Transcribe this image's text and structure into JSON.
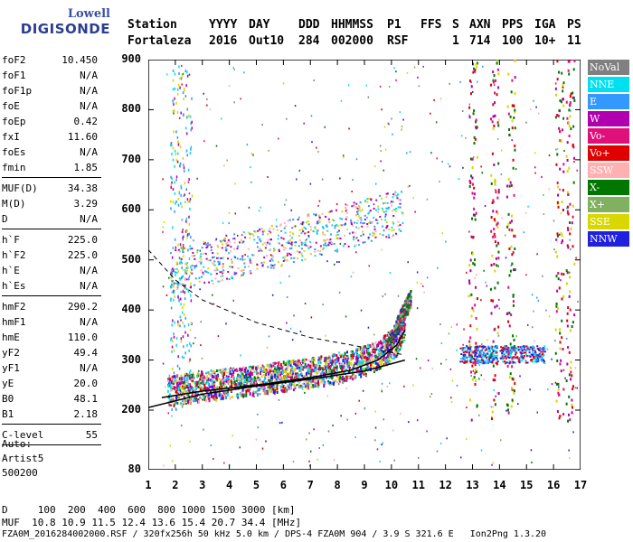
{
  "logo": {
    "top": "Lowell",
    "bottom": "DIGISONDE"
  },
  "header": {
    "row1": [
      "Station",
      "YYYY",
      "DAY",
      "DDD",
      "HHMMSS",
      "P1",
      "FFS",
      "S",
      "AXN",
      "PPS",
      "IGA",
      "PS"
    ],
    "row2": [
      "Fortaleza",
      "2016",
      "Out10",
      "284",
      "002000",
      "RSF",
      "1",
      "714",
      "100",
      "10+",
      "11"
    ]
  },
  "params": [
    {
      "k": "foF2",
      "v": "10.450"
    },
    {
      "k": "foF1",
      "v": "N/A"
    },
    {
      "k": "foF1p",
      "v": "N/A"
    },
    {
      "k": "foE",
      "v": "N/A"
    },
    {
      "k": "foEp",
      "v": "0.42"
    },
    {
      "k": "fxI",
      "v": "11.60"
    },
    {
      "k": "foEs",
      "v": "N/A"
    },
    {
      "k": "fmin",
      "v": "1.85"
    },
    {
      "k": "MUF(D)",
      "v": "34.38"
    },
    {
      "k": "M(D)",
      "v": "3.29"
    },
    {
      "k": "D",
      "v": "N/A"
    },
    {
      "k": "h`F",
      "v": "225.0"
    },
    {
      "k": "h`F2",
      "v": "225.0"
    },
    {
      "k": "h`E",
      "v": "N/A"
    },
    {
      "k": "h`Es",
      "v": "N/A"
    },
    {
      "k": "hmF2",
      "v": "290.2"
    },
    {
      "k": "hmF1",
      "v": "N/A"
    },
    {
      "k": "hmE",
      "v": "110.0"
    },
    {
      "k": "yF2",
      "v": "49.4"
    },
    {
      "k": "yF1",
      "v": "N/A"
    },
    {
      "k": "yE",
      "v": "20.0"
    },
    {
      "k": "B0",
      "v": "48.1"
    },
    {
      "k": "B1",
      "v": "2.18"
    },
    {
      "k": "C-level",
      "v": "55"
    }
  ],
  "auto": [
    "Auto:",
    "Artist5",
    "500200"
  ],
  "legend": [
    {
      "label": "NoVal",
      "color": "#808080"
    },
    {
      "label": "NNE",
      "color": "#00e0f0"
    },
    {
      "label": "E",
      "color": "#3399ff"
    },
    {
      "label": "W",
      "color": "#b000b0"
    },
    {
      "label": "Vo-",
      "color": "#e0107a"
    },
    {
      "label": "Vo+",
      "color": "#e00000"
    },
    {
      "label": "SSW",
      "color": "#ffb0b0"
    },
    {
      "label": "X-",
      "color": "#007800"
    },
    {
      "label": "X+",
      "color": "#80b060"
    },
    {
      "label": "SSE",
      "color": "#d8d800"
    },
    {
      "label": "NNW",
      "color": "#2020e0"
    }
  ],
  "chart_data": {
    "type": "scatter",
    "xlim": [
      1,
      17
    ],
    "ylim": [
      80,
      900
    ],
    "x_ticks": [
      "1",
      "2",
      "3",
      "4",
      "5",
      "6",
      "7",
      "8",
      "9",
      "10",
      "11",
      "12",
      "13",
      "14",
      "15",
      "16",
      "17"
    ],
    "y_ticks": [
      "80",
      "200",
      "300",
      "400",
      "500",
      "600",
      "700",
      "800",
      "900"
    ],
    "profile": [
      [
        1.5,
        225
      ],
      [
        3,
        238
      ],
      [
        5,
        250
      ],
      [
        7,
        265
      ],
      [
        8.5,
        280
      ],
      [
        9.5,
        300
      ],
      [
        10.2,
        330
      ],
      [
        10.5,
        360
      ]
    ],
    "lower_curve": [
      [
        1,
        205
      ],
      [
        3,
        232
      ],
      [
        5,
        248
      ],
      [
        7,
        262
      ],
      [
        9,
        278
      ],
      [
        10.5,
        300
      ]
    ],
    "dashed_curve": [
      [
        1,
        520
      ],
      [
        2,
        460
      ],
      [
        3,
        420
      ],
      [
        5,
        375
      ],
      [
        7,
        345
      ],
      [
        9,
        325
      ],
      [
        10.5,
        310
      ]
    ]
  },
  "footer": {
    "line1": "D     100  200  400  600  800 1000 1500 3000 [km]",
    "line2": "MUF  10.8 10.9 11.5 12.4 13.6 15.4 20.7 34.4 [MHz]",
    "line3": "FZA0M_2016284002000.RSF / 320fx256h 50 kHz 5.0 km / DPS-4 FZA0M 904 / 3.9 S 321.6 E   Ion2Png 1.3.20"
  }
}
